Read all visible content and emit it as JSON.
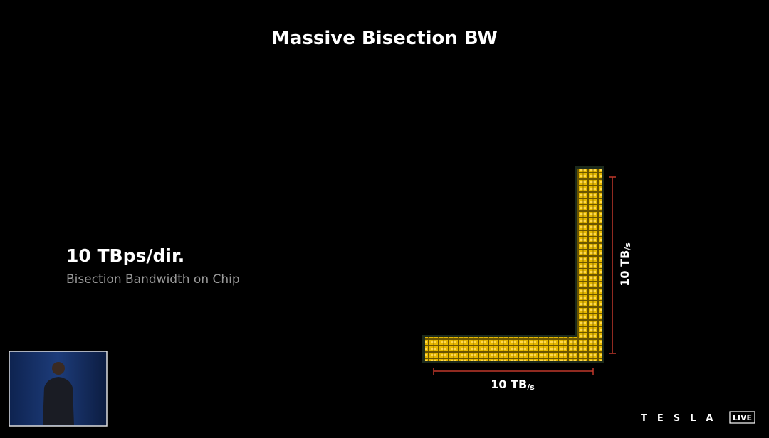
{
  "title": "Massive Bisection BW",
  "stat": {
    "value": "10 TBps/dir.",
    "caption": "Bisection Bandwidth on Chip"
  },
  "diagram": {
    "horizontal_label": {
      "main": "10 TB",
      "unit": "/s"
    },
    "vertical_label": {
      "main": "10 TB",
      "unit": "/s"
    }
  },
  "branding": {
    "logo": "TESLA",
    "badge": "LIVE"
  }
}
